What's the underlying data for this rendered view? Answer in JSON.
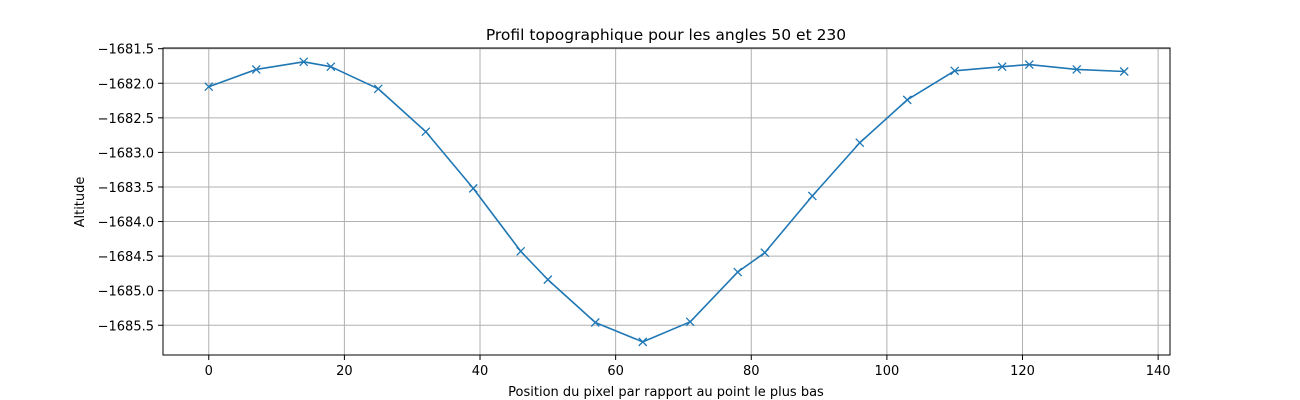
{
  "chart_data": {
    "type": "line",
    "title": "Profil topographique pour les angles 50 et 230",
    "xlabel": "Position du pixel par rapport au point le plus bas",
    "ylabel": "Altitude",
    "xlim": [
      -6.75,
      141.75
    ],
    "ylim": [
      -1685.93,
      -1681.49
    ],
    "xticks": [
      0,
      20,
      40,
      60,
      80,
      100,
      120,
      140
    ],
    "xtick_labels": [
      "0",
      "20",
      "40",
      "60",
      "80",
      "100",
      "120",
      "140"
    ],
    "yticks": [
      -1681.5,
      -1682.0,
      -1682.5,
      -1683.0,
      -1683.5,
      -1684.0,
      -1684.5,
      -1685.0,
      -1685.5
    ],
    "ytick_labels": [
      "−1681.5",
      "−1682.0",
      "−1682.5",
      "−1683.0",
      "−1683.5",
      "−1684.0",
      "−1684.5",
      "−1685.0",
      "−1685.5"
    ],
    "grid": true,
    "series": [
      {
        "color": "#1f77b4",
        "marker": "x",
        "x": [
          0,
          7,
          14,
          18,
          25,
          32,
          39,
          46,
          50,
          57,
          64,
          71,
          78,
          82,
          89,
          96,
          103,
          110,
          117,
          121,
          128,
          135
        ],
        "y": [
          -1682.05,
          -1681.8,
          -1681.69,
          -1681.76,
          -1682.08,
          -1682.7,
          -1683.52,
          -1684.43,
          -1684.84,
          -1685.46,
          -1685.74,
          -1685.45,
          -1684.73,
          -1684.45,
          -1683.63,
          -1682.86,
          -1682.24,
          -1681.82,
          -1681.76,
          -1681.73,
          -1681.8,
          -1681.83
        ]
      }
    ]
  }
}
